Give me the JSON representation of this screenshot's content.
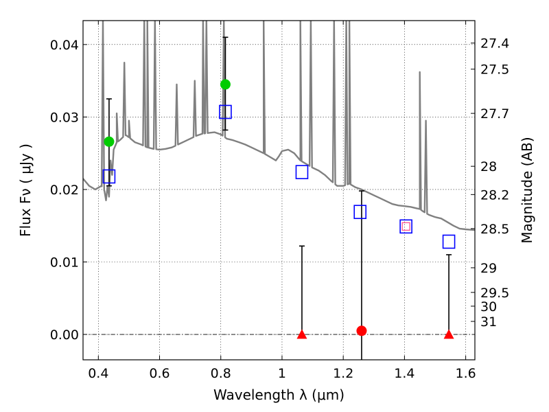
{
  "chart_data": {
    "type": "scatter",
    "xlabel": "Wavelength  λ (μm)",
    "ylabel": "Flux  Fν  ( μJy )",
    "y2label": "Magnitude (AB)",
    "xlim": [
      0.35,
      1.63
    ],
    "ylim": [
      -0.0035,
      0.0433
    ],
    "grid": "dotted",
    "x_ticks": [
      "0.4",
      "0.6",
      "0.8",
      "1",
      "1.2",
      "1.4",
      "1.6"
    ],
    "x_tick_values": [
      0.4,
      0.6,
      0.8,
      1.0,
      1.2,
      1.4,
      1.6
    ],
    "y_ticks": [
      "0.00",
      "0.01",
      "0.02",
      "0.03",
      "0.04"
    ],
    "y_tick_values": [
      0.0,
      0.01,
      0.02,
      0.03,
      0.04
    ],
    "y2_ticks": [
      {
        "label": "27.4",
        "flux": 0.0402
      },
      {
        "label": "27.5",
        "flux": 0.0366
      },
      {
        "label": "27.7",
        "flux": 0.0305
      },
      {
        "label": "28",
        "flux": 0.0232
      },
      {
        "label": "28.2",
        "flux": 0.0193
      },
      {
        "label": "28.5",
        "flux": 0.0146
      },
      {
        "label": "29",
        "flux": 0.0092
      },
      {
        "label": "29.5",
        "flux": 0.0058
      },
      {
        "label": "30",
        "flux": 0.0039
      },
      {
        "label": "31",
        "flux": 0.0018
      }
    ],
    "series": [
      {
        "kind": "model_spectrum",
        "color": "#808080",
        "points": [
          [
            0.35,
            0.0215
          ],
          [
            0.37,
            0.0205
          ],
          [
            0.39,
            0.02
          ],
          [
            0.41,
            0.0205
          ],
          [
            0.42,
            0.0198
          ],
          [
            0.425,
            0.0185
          ],
          [
            0.43,
            0.0205
          ],
          [
            0.435,
            0.019
          ],
          [
            0.44,
            0.024
          ],
          [
            0.445,
            0.022
          ],
          [
            0.45,
            0.0255
          ],
          [
            0.46,
            0.0265
          ],
          [
            0.47,
            0.0268
          ],
          [
            0.48,
            0.0272
          ],
          [
            0.49,
            0.0275
          ],
          [
            0.5,
            0.0272
          ],
          [
            0.52,
            0.0265
          ],
          [
            0.54,
            0.0262
          ],
          [
            0.56,
            0.0258
          ],
          [
            0.58,
            0.0256
          ],
          [
            0.6,
            0.0255
          ],
          [
            0.62,
            0.0256
          ],
          [
            0.64,
            0.0258
          ],
          [
            0.66,
            0.0262
          ],
          [
            0.68,
            0.0266
          ],
          [
            0.7,
            0.027
          ],
          [
            0.72,
            0.0274
          ],
          [
            0.74,
            0.0277
          ],
          [
            0.76,
            0.0278
          ],
          [
            0.78,
            0.0279
          ],
          [
            0.8,
            0.0276
          ],
          [
            0.82,
            0.027
          ],
          [
            0.84,
            0.0268
          ],
          [
            0.86,
            0.0265
          ],
          [
            0.88,
            0.0262
          ],
          [
            0.9,
            0.0258
          ],
          [
            0.92,
            0.0254
          ],
          [
            0.94,
            0.025
          ],
          [
            0.96,
            0.0245
          ],
          [
            0.98,
            0.024
          ],
          [
            0.99,
            0.0246
          ],
          [
            1.0,
            0.0253
          ],
          [
            1.02,
            0.0255
          ],
          [
            1.04,
            0.025
          ],
          [
            1.06,
            0.024
          ],
          [
            1.08,
            0.0235
          ],
          [
            1.1,
            0.023
          ],
          [
            1.12,
            0.0226
          ],
          [
            1.14,
            0.022
          ],
          [
            1.16,
            0.0212
          ],
          [
            1.18,
            0.0205
          ],
          [
            1.2,
            0.0205
          ],
          [
            1.22,
            0.0208
          ],
          [
            1.24,
            0.0203
          ],
          [
            1.26,
            0.02
          ],
          [
            1.28,
            0.0196
          ],
          [
            1.3,
            0.0192
          ],
          [
            1.32,
            0.0188
          ],
          [
            1.34,
            0.0184
          ],
          [
            1.36,
            0.018
          ],
          [
            1.38,
            0.0178
          ],
          [
            1.4,
            0.0177
          ],
          [
            1.42,
            0.0176
          ],
          [
            1.44,
            0.0174
          ],
          [
            1.45,
            0.0173
          ],
          [
            1.46,
            0.017
          ],
          [
            1.48,
            0.0165
          ],
          [
            1.5,
            0.0162
          ],
          [
            1.52,
            0.016
          ],
          [
            1.54,
            0.0155
          ],
          [
            1.56,
            0.015
          ],
          [
            1.58,
            0.0146
          ],
          [
            1.6,
            0.0145
          ],
          [
            1.63,
            0.0144
          ]
        ],
        "emission_lines": [
          {
            "x": 0.415,
            "peak": 0.0433
          },
          {
            "x": 0.46,
            "peak": 0.0305
          },
          {
            "x": 0.485,
            "peak": 0.0375
          },
          {
            "x": 0.5,
            "peak": 0.0295
          },
          {
            "x": 0.55,
            "peak": 0.0433
          },
          {
            "x": 0.56,
            "peak": 0.0433
          },
          {
            "x": 0.585,
            "peak": 0.0433
          },
          {
            "x": 0.656,
            "peak": 0.0345
          },
          {
            "x": 0.715,
            "peak": 0.035
          },
          {
            "x": 0.742,
            "peak": 0.0433
          },
          {
            "x": 0.753,
            "peak": 0.0433
          },
          {
            "x": 0.81,
            "peak": 0.0433
          },
          {
            "x": 0.94,
            "peak": 0.0433
          },
          {
            "x": 1.06,
            "peak": 0.0433
          },
          {
            "x": 1.094,
            "peak": 0.0433
          },
          {
            "x": 1.17,
            "peak": 0.0433
          },
          {
            "x": 1.21,
            "peak": 0.0433
          },
          {
            "x": 1.22,
            "peak": 0.0433
          },
          {
            "x": 1.45,
            "peak": 0.0362
          },
          {
            "x": 1.47,
            "peak": 0.0295
          }
        ]
      },
      {
        "kind": "model_photometry",
        "marker": "open-square",
        "color": "#0000ff",
        "points": [
          [
            0.435,
            0.0218
          ],
          [
            0.815,
            0.0307
          ],
          [
            1.065,
            0.0224
          ],
          [
            1.255,
            0.0169
          ],
          [
            1.405,
            0.0149
          ],
          [
            1.545,
            0.0128
          ]
        ]
      },
      {
        "kind": "detections",
        "marker": "circle",
        "points": [
          {
            "x": 0.435,
            "y": 0.0266,
            "err_low": 0.0205,
            "err_high": 0.0325,
            "color": "#00cc00"
          },
          {
            "x": 0.815,
            "y": 0.0345,
            "err_low": 0.0282,
            "err_high": 0.041,
            "color": "#00cc00"
          },
          {
            "x": 1.26,
            "y": 0.0005,
            "err_low": -0.0035,
            "err_high": 0.0198,
            "color": "#ff0000"
          }
        ]
      },
      {
        "kind": "upper_limits",
        "marker": "triangle",
        "color": "#ff0000",
        "points": [
          {
            "x": 1.065,
            "y": 0.0,
            "err_high": 0.0122
          },
          {
            "x": 1.545,
            "y": 0.0,
            "err_high": 0.011
          }
        ]
      },
      {
        "kind": "highlight",
        "marker": "small-square",
        "color": "#ff4488",
        "points": [
          [
            1.405,
            0.0149
          ]
        ]
      }
    ]
  }
}
